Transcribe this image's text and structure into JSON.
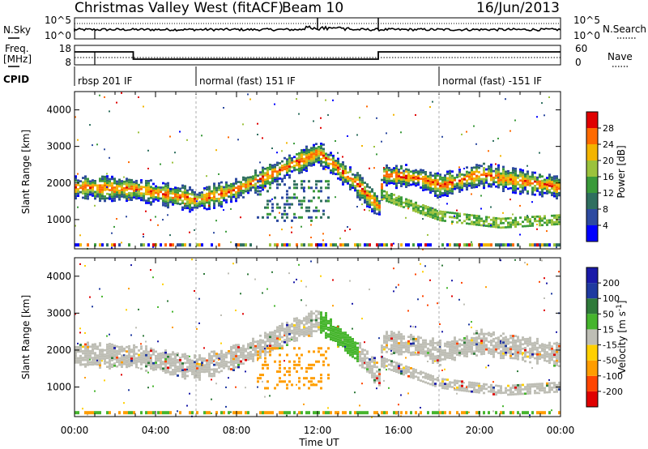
{
  "header": {
    "site": "Christmas Valley West (fitACF)",
    "beam": "Beam 10",
    "date": "16/Jun/2013"
  },
  "top_panel": {
    "left_labels": [
      "N.Sky",
      "Freq.",
      "[MHz]",
      "CPID"
    ],
    "right_labels": [
      "N.Search",
      "Nave"
    ],
    "nsky_ticks": [
      "10^5",
      "10^0"
    ],
    "nsearch_ticks": [
      "10^5",
      "10^0"
    ],
    "freq_ticks": [
      "18",
      "8"
    ],
    "nave_ticks": [
      "60",
      "0"
    ],
    "cpid_labels": [
      {
        "text": "rbsp 201 IF",
        "start_hour": 0.0
      },
      {
        "text": "normal (fast) 151 IF",
        "start_hour": 6.0
      },
      {
        "text": "normal (fast) -151 IF",
        "start_hour": 18.0
      }
    ]
  },
  "x_axis": {
    "label": "Time UT",
    "ticks": [
      "00:00",
      "04:00",
      "08:00",
      "12:00",
      "16:00",
      "20:00",
      "00:00"
    ],
    "range_hours": [
      0,
      24
    ]
  },
  "chart_data": [
    {
      "type": "heatmap",
      "title": "",
      "xlabel": "Time UT",
      "ylabel": "Slant Range [km]",
      "xlim": [
        0,
        24
      ],
      "ylim": [
        200,
        4500
      ],
      "yticks": [
        "1000",
        "2000",
        "3000",
        "4000"
      ],
      "colorbar": {
        "label": "Power [dB]",
        "ticks": [
          "28",
          "24",
          "20",
          "16",
          "12",
          "8",
          "4"
        ],
        "range": [
          0,
          32
        ],
        "colors": [
          "#0000ff",
          "#2d4aa0",
          "#2f6f5f",
          "#3a9a3a",
          "#9bc23c",
          "#f3b400",
          "#ff6a00",
          "#e00000"
        ]
      },
      "features": [
        {
          "name": "main echo band",
          "points": [
            [
              0,
              1850
            ],
            [
              3,
              1800
            ],
            [
              6,
              1500
            ],
            [
              8,
              1800
            ],
            [
              10,
              2300
            ],
            [
              12,
              2800
            ],
            [
              14,
              1900
            ],
            [
              15,
              1300
            ],
            [
              15.2,
              2200
            ],
            [
              17,
              2100
            ],
            [
              18,
              1900
            ],
            [
              20,
              2200
            ],
            [
              24,
              1850
            ]
          ]
        },
        {
          "name": "lower band",
          "points": [
            [
              15,
              1700
            ],
            [
              18,
              1100
            ],
            [
              21,
              900
            ],
            [
              24,
              1000
            ]
          ]
        }
      ]
    },
    {
      "type": "heatmap",
      "title": "",
      "xlabel": "Time UT",
      "ylabel": "Slant Range [km]",
      "xlim": [
        0,
        24
      ],
      "ylim": [
        200,
        4500
      ],
      "yticks": [
        "1000",
        "2000",
        "3000",
        "4000"
      ],
      "colorbar": {
        "label": "Velocity [m s^-1]",
        "ticks": [
          "200",
          "100",
          "50",
          "15",
          "-15",
          "-50",
          "-100",
          "-200"
        ],
        "range": [
          -250,
          250
        ],
        "colors": [
          "#e00000",
          "#ff4500",
          "#ff9d00",
          "#ffd000",
          "#bebeb5",
          "#46b52d",
          "#2f7a3a",
          "#1f3aa0",
          "#1a1aa8"
        ]
      },
      "features": [
        {
          "name": "ground scatter band",
          "points": [
            [
              0,
              1850
            ],
            [
              3,
              1800
            ],
            [
              6,
              1500
            ],
            [
              8,
              1800
            ],
            [
              10,
              2300
            ],
            [
              12,
              2800
            ],
            [
              14,
              1900
            ],
            [
              15,
              1300
            ],
            [
              15.2,
              2200
            ],
            [
              17,
              2100
            ],
            [
              18,
              1900
            ],
            [
              20,
              2200
            ],
            [
              24,
              1850
            ]
          ]
        },
        {
          "name": "lower band",
          "points": [
            [
              15,
              1700
            ],
            [
              18,
              1100
            ],
            [
              21,
              900
            ],
            [
              24,
              1000
            ]
          ]
        }
      ]
    }
  ]
}
